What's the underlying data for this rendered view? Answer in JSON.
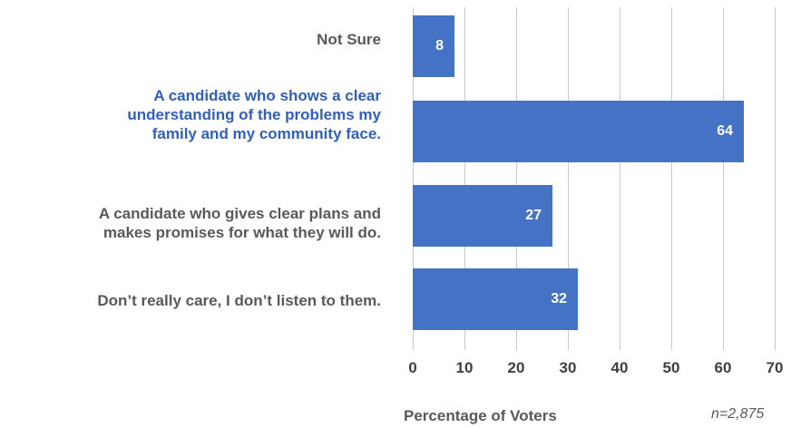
{
  "chart_data": {
    "type": "bar",
    "orientation": "horizontal",
    "categories": [
      "Not Sure",
      "A candidate who shows a clear\nunderstanding of the problems my\nfamily and my community face.",
      "A candidate who gives clear plans and\nmakes promises for what they will do.",
      "Don’t really care, I don’t listen to them."
    ],
    "values": [
      8,
      64,
      27,
      32
    ],
    "highlight_index": 1,
    "xlim": [
      0,
      70
    ],
    "xticks": [
      0,
      10,
      20,
      30,
      40,
      50,
      60,
      70
    ],
    "xlabel": "Percentage of Voters",
    "note": "n=2,875",
    "grid": true,
    "colors": {
      "bar": "#4472c4",
      "highlight_text": "#2f5fbf",
      "label_text": "#595959"
    }
  }
}
